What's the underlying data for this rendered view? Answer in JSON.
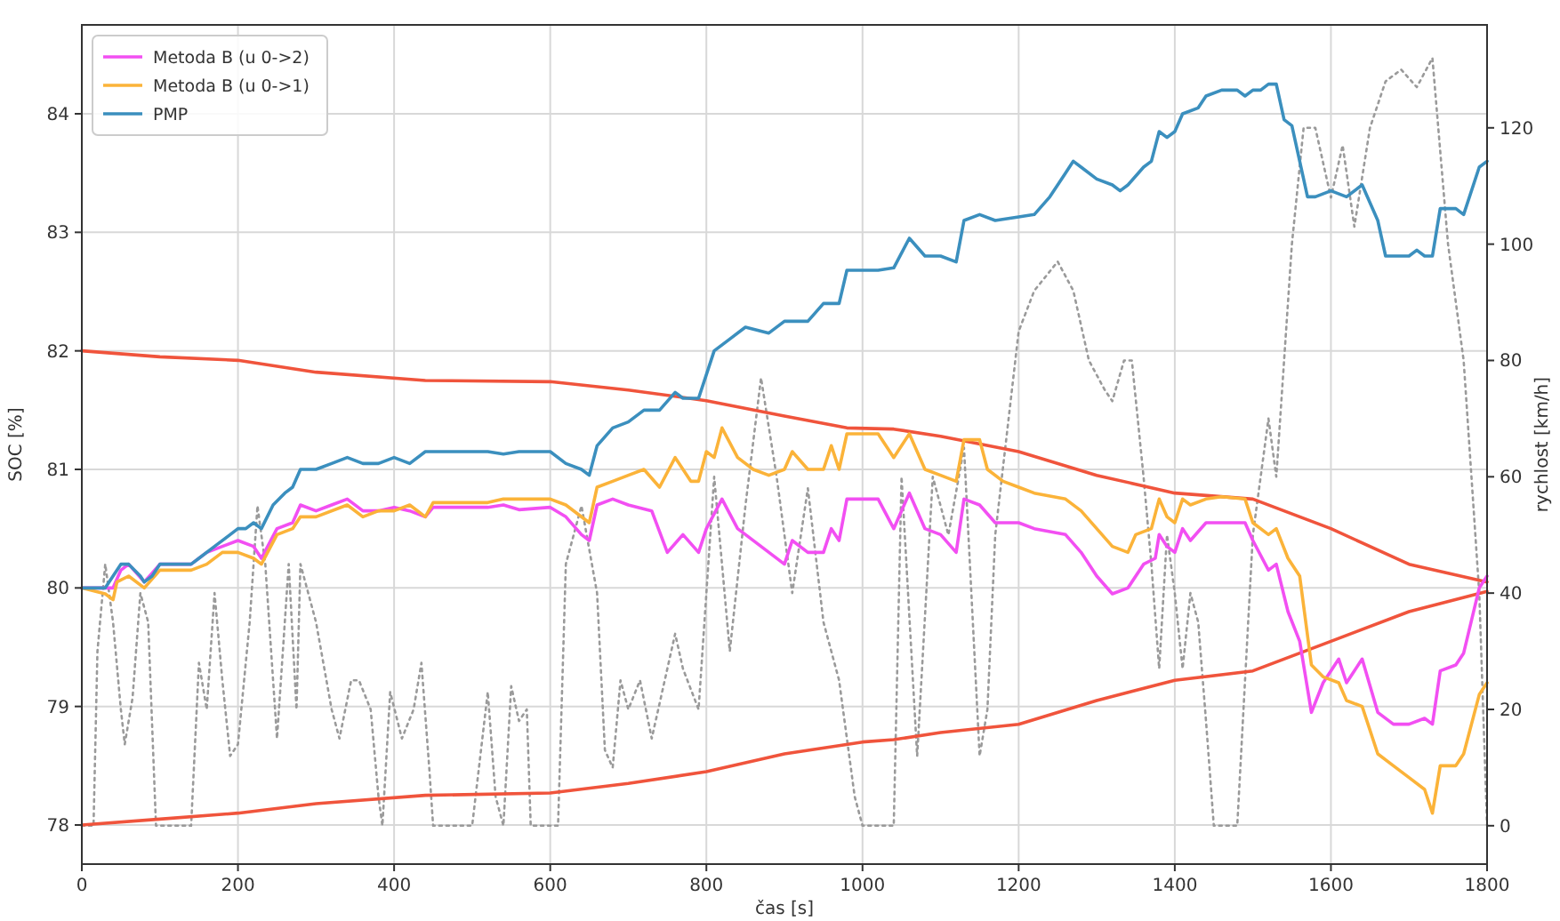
{
  "chart_data": {
    "type": "line",
    "xlabel": "čas [s]",
    "ylabel": "SOC [%]",
    "y2label": "rychlost [km/h]",
    "xlim": [
      0,
      1800
    ],
    "xticks": [
      0,
      200,
      400,
      600,
      800,
      1000,
      1200,
      1400,
      1600,
      1800
    ],
    "ylim": [
      77.67,
      84.75
    ],
    "yticks": [
      78,
      79,
      80,
      81,
      82,
      83,
      84
    ],
    "y2lim": [
      -6.6,
      137.7
    ],
    "y2ticks": [
      0,
      20,
      40,
      60,
      80,
      100,
      120
    ],
    "grid": true,
    "legend": "top left",
    "series": [
      {
        "color": "#9a9a9a",
        "axis": "y2",
        "line_style": "dotted",
        "x": [
          0,
          15,
          20,
          30,
          40,
          50,
          55,
          65,
          75,
          85,
          95,
          120,
          140,
          150,
          160,
          170,
          180,
          190,
          200,
          215,
          225,
          235,
          250,
          265,
          275,
          280,
          290,
          300,
          320,
          330,
          345,
          355,
          370,
          380,
          385,
          395,
          410,
          425,
          435,
          445,
          450,
          500,
          520,
          530,
          540,
          550,
          560,
          570,
          575,
          610,
          620,
          640,
          660,
          670,
          680,
          690,
          700,
          715,
          730,
          760,
          770,
          790,
          800,
          810,
          830,
          850,
          870,
          890,
          910,
          930,
          950,
          970,
          990,
          1000,
          1040,
          1050,
          1070,
          1090,
          1110,
          1130,
          1150,
          1160,
          1170,
          1200,
          1220,
          1250,
          1270,
          1290,
          1310,
          1320,
          1335,
          1345,
          1360,
          1370,
          1380,
          1390,
          1400,
          1410,
          1420,
          1430,
          1440,
          1450,
          1480,
          1500,
          1520,
          1530,
          1550,
          1565,
          1580,
          1600,
          1615,
          1630,
          1650,
          1670,
          1690,
          1710,
          1730,
          1750,
          1770,
          1790,
          1800
        ],
        "values": [
          0,
          0,
          30,
          45,
          35,
          20,
          14,
          22,
          40,
          35,
          0,
          0,
          0,
          28,
          20,
          40,
          25,
          12,
          14,
          35,
          55,
          45,
          15,
          45,
          20,
          45,
          40,
          35,
          20,
          15,
          25,
          25,
          20,
          5,
          0,
          23,
          15,
          20,
          28,
          10,
          0,
          0,
          23,
          5,
          0,
          24,
          18,
          20,
          0,
          0,
          45,
          55,
          40,
          13,
          10,
          25,
          20,
          25,
          15,
          33,
          27,
          20,
          40,
          60,
          30,
          55,
          77,
          60,
          40,
          58,
          35,
          25,
          5,
          0,
          0,
          60,
          12,
          60,
          50,
          65,
          12,
          20,
          50,
          85,
          92,
          97,
          92,
          80,
          75,
          73,
          80,
          80,
          60,
          45,
          27,
          50,
          40,
          27,
          40,
          35,
          18,
          0,
          0,
          50,
          70,
          60,
          100,
          120,
          120,
          108,
          117,
          103,
          120,
          128,
          130,
          127,
          132,
          100,
          80,
          40,
          0
        ]
      },
      {
        "color": "#f0543c",
        "x": [
          0,
          100,
          200,
          300,
          440,
          600,
          700,
          800,
          900,
          980,
          1040,
          1100,
          1200,
          1300,
          1400,
          1500,
          1600,
          1700,
          1800
        ],
        "values": [
          82.0,
          81.95,
          81.92,
          81.82,
          81.75,
          81.74,
          81.67,
          81.58,
          81.45,
          81.35,
          81.34,
          81.28,
          81.15,
          80.95,
          80.8,
          80.75,
          80.5,
          80.2,
          80.05
        ]
      },
      {
        "color": "#f0543c",
        "x": [
          0,
          100,
          200,
          300,
          440,
          600,
          700,
          800,
          900,
          1000,
          1040,
          1100,
          1200,
          1300,
          1400,
          1500,
          1600,
          1700,
          1800
        ],
        "values": [
          78.0,
          78.05,
          78.1,
          78.18,
          78.25,
          78.27,
          78.35,
          78.45,
          78.6,
          78.7,
          78.72,
          78.78,
          78.85,
          79.05,
          79.22,
          79.3,
          79.55,
          79.8,
          79.97
        ]
      },
      {
        "name": "Metoda B (u 0->2)",
        "color": "#f24ff2",
        "x": [
          0,
          30,
          40,
          50,
          60,
          80,
          100,
          140,
          160,
          180,
          200,
          220,
          230,
          250,
          270,
          280,
          300,
          320,
          340,
          360,
          380,
          400,
          420,
          440,
          450,
          520,
          540,
          560,
          600,
          620,
          640,
          650,
          660,
          680,
          700,
          730,
          750,
          770,
          790,
          800,
          820,
          840,
          870,
          900,
          910,
          930,
          950,
          960,
          970,
          980,
          1020,
          1040,
          1060,
          1080,
          1100,
          1120,
          1130,
          1150,
          1170,
          1200,
          1220,
          1260,
          1280,
          1300,
          1320,
          1340,
          1360,
          1375,
          1380,
          1390,
          1400,
          1410,
          1420,
          1440,
          1460,
          1490,
          1500,
          1520,
          1530,
          1545,
          1560,
          1575,
          1590,
          1610,
          1620,
          1640,
          1660,
          1680,
          1700,
          1720,
          1730,
          1740,
          1760,
          1770,
          1790,
          1800
        ],
        "values": [
          80,
          80,
          80.0,
          80.15,
          80.2,
          80.05,
          80.2,
          80.2,
          80.3,
          80.35,
          80.4,
          80.35,
          80.25,
          80.5,
          80.55,
          80.7,
          80.65,
          80.7,
          80.75,
          80.65,
          80.65,
          80.68,
          80.65,
          80.6,
          80.68,
          80.68,
          80.7,
          80.66,
          80.68,
          80.6,
          80.45,
          80.4,
          80.7,
          80.75,
          80.7,
          80.65,
          80.3,
          80.45,
          80.3,
          80.5,
          80.75,
          80.5,
          80.35,
          80.2,
          80.4,
          80.3,
          80.3,
          80.5,
          80.4,
          80.75,
          80.75,
          80.5,
          80.8,
          80.5,
          80.45,
          80.3,
          80.75,
          80.7,
          80.55,
          80.55,
          80.5,
          80.45,
          80.3,
          80.1,
          79.95,
          80.0,
          80.2,
          80.25,
          80.45,
          80.35,
          80.3,
          80.5,
          80.4,
          80.55,
          80.55,
          80.55,
          80.4,
          80.15,
          80.2,
          79.8,
          79.55,
          78.95,
          79.2,
          79.4,
          79.2,
          79.4,
          78.95,
          78.85,
          78.85,
          78.9,
          78.85,
          79.3,
          79.35,
          79.45,
          80.0,
          80.1
        ]
      },
      {
        "name": "Metoda B (u 0->1)",
        "color": "#fbb339",
        "x": [
          0,
          30,
          40,
          45,
          60,
          80,
          100,
          140,
          160,
          180,
          200,
          220,
          230,
          250,
          270,
          280,
          300,
          340,
          360,
          380,
          400,
          420,
          440,
          450,
          520,
          540,
          560,
          600,
          620,
          650,
          660,
          680,
          700,
          720,
          740,
          760,
          780,
          790,
          800,
          810,
          820,
          840,
          860,
          880,
          900,
          910,
          930,
          950,
          960,
          970,
          980,
          1020,
          1040,
          1060,
          1080,
          1100,
          1120,
          1130,
          1150,
          1160,
          1180,
          1200,
          1220,
          1260,
          1280,
          1300,
          1320,
          1340,
          1350,
          1370,
          1380,
          1390,
          1400,
          1410,
          1420,
          1440,
          1460,
          1490,
          1500,
          1520,
          1530,
          1545,
          1560,
          1575,
          1590,
          1610,
          1620,
          1640,
          1660,
          1680,
          1700,
          1720,
          1730,
          1740,
          1760,
          1770,
          1790,
          1800
        ],
        "values": [
          80,
          79.95,
          79.9,
          80.05,
          80.1,
          80.0,
          80.15,
          80.15,
          80.2,
          80.3,
          80.3,
          80.25,
          80.2,
          80.45,
          80.5,
          80.6,
          80.6,
          80.7,
          80.6,
          80.65,
          80.65,
          80.7,
          80.6,
          80.72,
          80.72,
          80.75,
          80.75,
          80.75,
          80.7,
          80.55,
          80.85,
          80.9,
          80.95,
          81.0,
          80.85,
          81.1,
          80.9,
          80.9,
          81.15,
          81.1,
          81.35,
          81.1,
          81.0,
          80.95,
          81.0,
          81.15,
          81.0,
          81.0,
          81.2,
          81.0,
          81.3,
          81.3,
          81.1,
          81.3,
          81.0,
          80.95,
          80.9,
          81.25,
          81.25,
          81.0,
          80.9,
          80.85,
          80.8,
          80.75,
          80.65,
          80.5,
          80.35,
          80.3,
          80.45,
          80.5,
          80.75,
          80.6,
          80.55,
          80.75,
          80.7,
          80.75,
          80.77,
          80.75,
          80.55,
          80.45,
          80.5,
          80.25,
          80.1,
          79.35,
          79.25,
          79.2,
          79.05,
          79.0,
          78.6,
          78.5,
          78.4,
          78.3,
          78.1,
          78.5,
          78.5,
          78.6,
          79.1,
          79.2
        ]
      },
      {
        "name": "PMP",
        "color": "#3b8fbe",
        "x": [
          0,
          20,
          30,
          40,
          50,
          60,
          75,
          80,
          90,
          100,
          140,
          150,
          170,
          190,
          200,
          210,
          220,
          230,
          245,
          260,
          270,
          280,
          300,
          320,
          340,
          360,
          380,
          400,
          420,
          440,
          520,
          540,
          560,
          600,
          620,
          640,
          650,
          660,
          680,
          700,
          720,
          740,
          760,
          770,
          790,
          800,
          810,
          830,
          850,
          880,
          900,
          930,
          950,
          970,
          980,
          1020,
          1040,
          1060,
          1080,
          1100,
          1120,
          1130,
          1150,
          1170,
          1200,
          1220,
          1240,
          1260,
          1270,
          1280,
          1300,
          1320,
          1330,
          1340,
          1360,
          1370,
          1380,
          1390,
          1400,
          1410,
          1430,
          1440,
          1460,
          1480,
          1490,
          1500,
          1510,
          1520,
          1530,
          1540,
          1550,
          1570,
          1580,
          1600,
          1620,
          1640,
          1660,
          1670,
          1680,
          1700,
          1710,
          1720,
          1730,
          1740,
          1760,
          1770,
          1790,
          1800
        ],
        "values": [
          80,
          80,
          80.0,
          80.1,
          80.2,
          80.2,
          80.1,
          80.05,
          80.1,
          80.2,
          80.2,
          80.25,
          80.35,
          80.45,
          80.5,
          80.5,
          80.55,
          80.5,
          80.7,
          80.8,
          80.85,
          81.0,
          81.0,
          81.05,
          81.1,
          81.05,
          81.05,
          81.1,
          81.05,
          81.15,
          81.15,
          81.13,
          81.15,
          81.15,
          81.05,
          81.0,
          80.95,
          81.2,
          81.35,
          81.4,
          81.5,
          81.5,
          81.65,
          81.6,
          81.6,
          81.8,
          82.0,
          82.1,
          82.2,
          82.15,
          82.25,
          82.25,
          82.4,
          82.4,
          82.68,
          82.68,
          82.7,
          82.95,
          82.8,
          82.8,
          82.75,
          83.1,
          83.15,
          83.1,
          83.13,
          83.15,
          83.3,
          83.5,
          83.6,
          83.55,
          83.45,
          83.4,
          83.35,
          83.4,
          83.55,
          83.6,
          83.85,
          83.8,
          83.85,
          84.0,
          84.05,
          84.15,
          84.2,
          84.2,
          84.15,
          84.2,
          84.2,
          84.25,
          84.25,
          83.95,
          83.9,
          83.3,
          83.3,
          83.35,
          83.3,
          83.4,
          83.1,
          82.8,
          82.8,
          82.8,
          82.85,
          82.8,
          82.8,
          83.2,
          83.2,
          83.15,
          83.55,
          83.6
        ]
      }
    ]
  }
}
